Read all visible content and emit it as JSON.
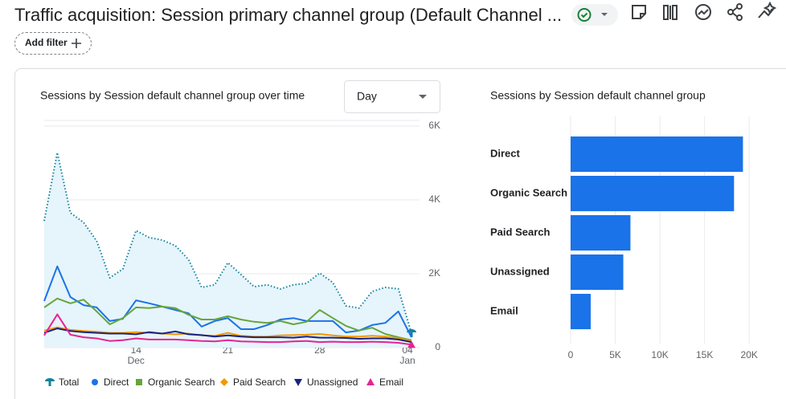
{
  "header": {
    "title": "Traffic acquisition: Session primary channel group (Default Channel ...",
    "filter_button": "Add filter"
  },
  "chart_data": [
    {
      "type": "line",
      "title": "Sessions by Session default channel group over time",
      "period_selector": "Day",
      "categories": [
        null,
        null,
        null,
        null,
        null,
        null,
        null,
        "14",
        null,
        null,
        null,
        null,
        null,
        null,
        "21",
        null,
        null,
        null,
        null,
        null,
        null,
        "28",
        null,
        null,
        null,
        null,
        null,
        null,
        "04"
      ],
      "category_sublabels": [
        null,
        null,
        null,
        null,
        null,
        null,
        null,
        "Dec",
        null,
        null,
        null,
        null,
        null,
        null,
        null,
        null,
        null,
        null,
        null,
        null,
        null,
        null,
        null,
        null,
        null,
        null,
        null,
        null,
        "Jan"
      ],
      "series": [
        {
          "name": "Total",
          "color": "#12839c",
          "marker": "drop",
          "dash": "dotted",
          "fill": "#e6f4fb",
          "end_marker": true,
          "values": [
            3430,
            5280,
            3650,
            3390,
            2890,
            1890,
            2130,
            3170,
            2980,
            2910,
            2760,
            2390,
            1630,
            1700,
            2300,
            1980,
            1650,
            1700,
            1590,
            1700,
            1740,
            2020,
            1760,
            1130,
            1070,
            1520,
            1630,
            1590,
            390
          ]
        },
        {
          "name": "Direct",
          "color": "#1a73e8",
          "marker": "circle",
          "values": [
            1260,
            2200,
            1370,
            1150,
            1090,
            720,
            780,
            1280,
            1200,
            1110,
            1020,
            930,
            570,
            720,
            800,
            500,
            500,
            610,
            760,
            800,
            720,
            720,
            720,
            410,
            460,
            610,
            670,
            980,
            280
          ]
        },
        {
          "name": "Organic Search",
          "color": "#67a53b",
          "marker": "square",
          "values": [
            1090,
            1330,
            1200,
            1300,
            980,
            630,
            800,
            1090,
            1070,
            1110,
            1070,
            890,
            760,
            760,
            850,
            760,
            700,
            670,
            720,
            630,
            700,
            1020,
            800,
            590,
            460,
            540,
            370,
            280,
            200
          ]
        },
        {
          "name": "Paid Search",
          "color": "#f29900",
          "marker": "diamond",
          "values": [
            460,
            550,
            480,
            450,
            430,
            400,
            400,
            420,
            400,
            380,
            360,
            380,
            330,
            320,
            400,
            320,
            300,
            300,
            330,
            340,
            350,
            370,
            330,
            300,
            300,
            320,
            300,
            250,
            180
          ]
        },
        {
          "name": "Unassigned",
          "color": "#1a237e",
          "marker": "triangle-down",
          "values": [
            400,
            520,
            450,
            420,
            400,
            380,
            380,
            360,
            420,
            380,
            440,
            360,
            340,
            300,
            330,
            300,
            280,
            280,
            280,
            270,
            300,
            270,
            270,
            260,
            240,
            250,
            250,
            220,
            150
          ]
        },
        {
          "name": "Email",
          "color": "#e52592",
          "marker": "triangle",
          "end_marker": true,
          "values": [
            330,
            900,
            350,
            280,
            250,
            180,
            200,
            250,
            220,
            220,
            220,
            200,
            180,
            170,
            200,
            170,
            160,
            150,
            150,
            170,
            180,
            150,
            160,
            150,
            150,
            160,
            150,
            130,
            80
          ]
        }
      ],
      "ylim": [
        0,
        6000
      ],
      "yticks": [
        0,
        {
          "value": 2000,
          "label": "2K"
        },
        {
          "value": 4000,
          "label": "4K"
        },
        {
          "value": 6000,
          "label": "6K"
        }
      ],
      "grid": true
    },
    {
      "type": "bar",
      "orientation": "horizontal",
      "title": "Sessions by Session default channel group",
      "categories": [
        "Direct",
        "Organic Search",
        "Paid Search",
        "Unassigned",
        "Email"
      ],
      "values": [
        19300,
        18300,
        6700,
        5900,
        2250
      ],
      "color": "#1a73e8",
      "xlim": [
        0,
        20700
      ],
      "xticks": [
        0,
        {
          "value": 5000,
          "label": "5K"
        },
        {
          "value": 10000,
          "label": "10K"
        },
        {
          "value": 15000,
          "label": "15K"
        },
        {
          "value": 20000,
          "label": "20K"
        }
      ],
      "grid": true
    }
  ]
}
